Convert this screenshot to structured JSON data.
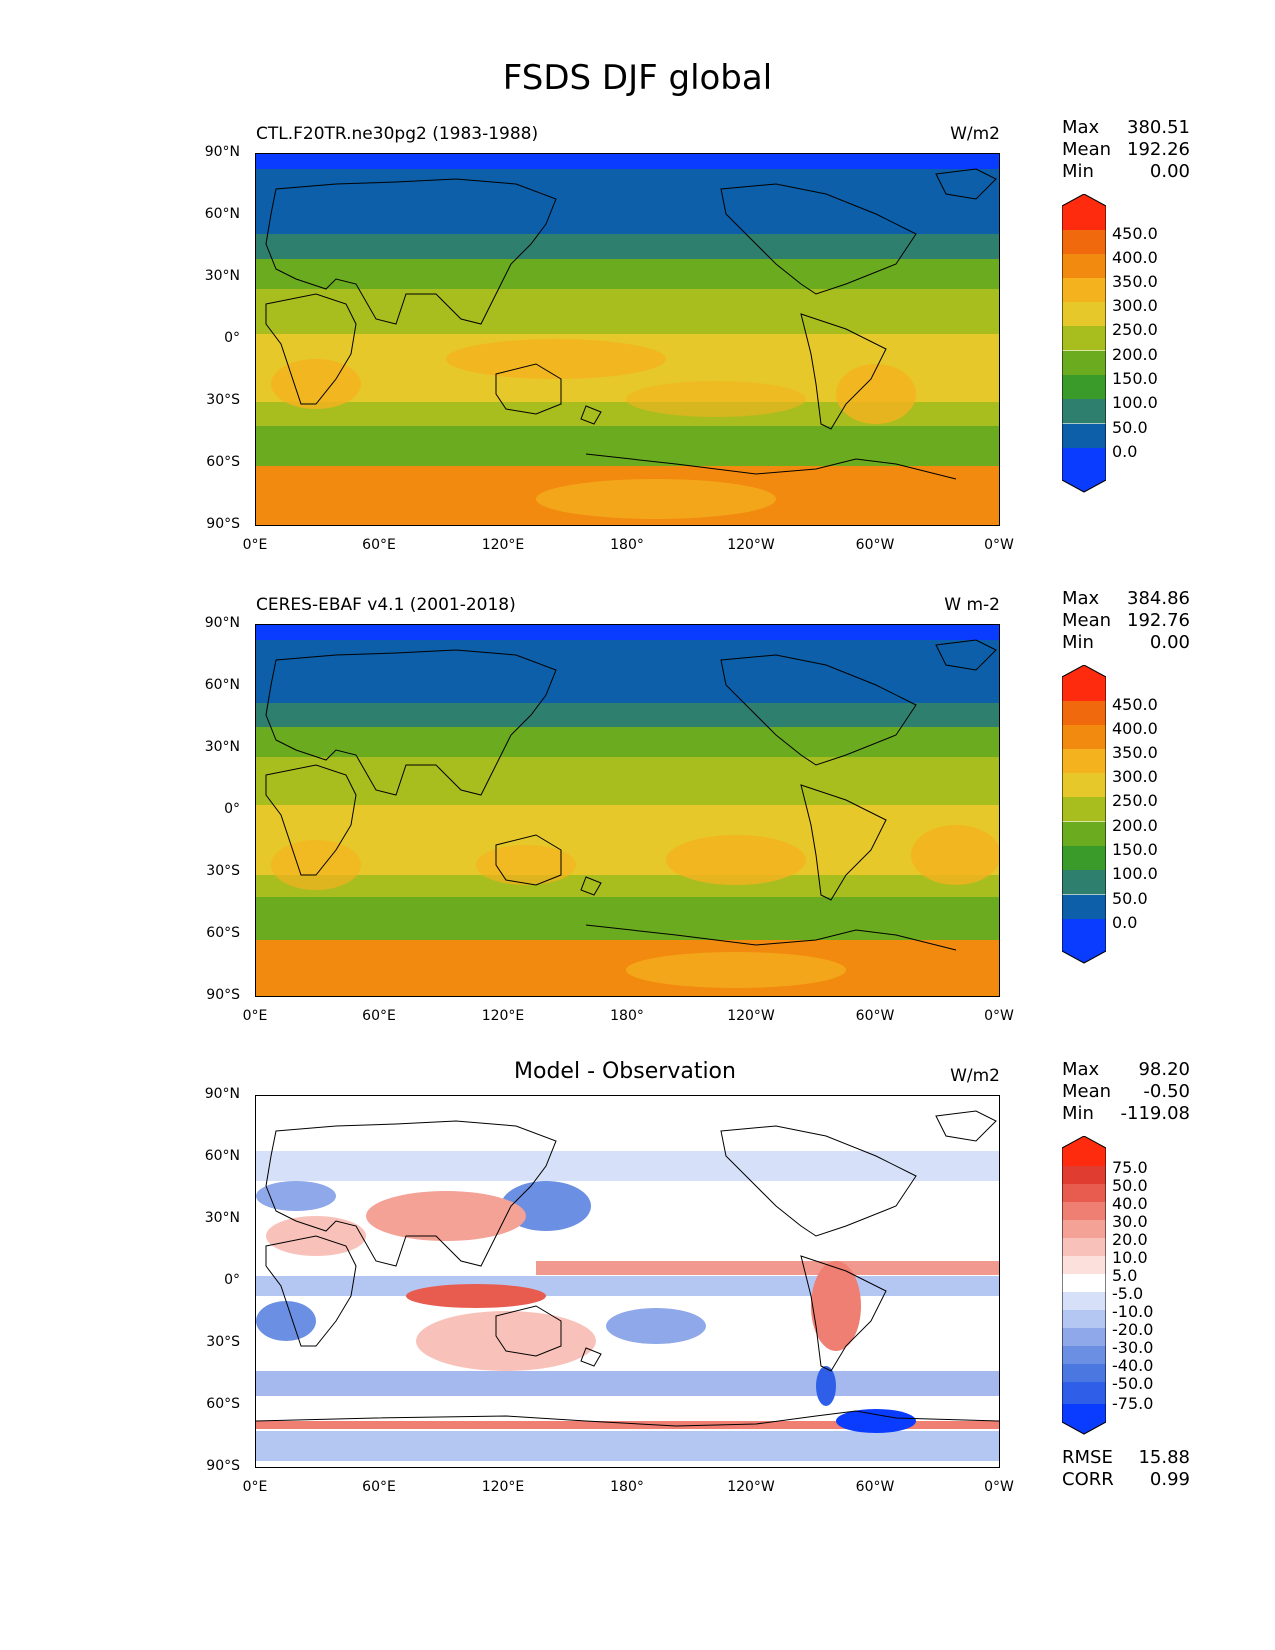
{
  "figure_title": "FSDS DJF global",
  "x_ticks": [
    "0°E",
    "60°E",
    "120°E",
    "180°",
    "120°W",
    "60°W",
    "0°W"
  ],
  "y_ticks": [
    "90°N",
    "60°N",
    "30°N",
    "0°",
    "30°S",
    "60°S",
    "90°S"
  ],
  "panels": [
    {
      "title": "CTL.F20TR.ne30pg2 (1983-1988)",
      "units": "W/m2",
      "stats": {
        "max_label": "Max",
        "max": "380.51",
        "mean_label": "Mean",
        "mean": "192.26",
        "min_label": "Min",
        "min": "0.00"
      },
      "colorbar_levels": [
        "450.0",
        "400.0",
        "350.0",
        "300.0",
        "250.0",
        "200.0",
        "150.0",
        "100.0",
        "50.0",
        "0.0"
      ]
    },
    {
      "title": "CERES-EBAF v4.1 (2001-2018)",
      "units": "W m-2",
      "stats": {
        "max_label": "Max",
        "max": "384.86",
        "mean_label": "Mean",
        "mean": "192.76",
        "min_label": "Min",
        "min": "0.00"
      },
      "colorbar_levels": [
        "450.0",
        "400.0",
        "350.0",
        "300.0",
        "250.0",
        "200.0",
        "150.0",
        "100.0",
        "50.0",
        "0.0"
      ]
    },
    {
      "title": "Model - Observation",
      "units": "W/m2",
      "stats": {
        "max_label": "Max",
        "max": "98.20",
        "mean_label": "Mean",
        "mean": "-0.50",
        "min_label": "Min",
        "min": "-119.08"
      },
      "colorbar_levels": [
        "75.0",
        "50.0",
        "40.0",
        "30.0",
        "20.0",
        "10.0",
        "5.0",
        "-5.0",
        "-10.0",
        "-20.0",
        "-30.0",
        "-40.0",
        "-50.0",
        "-75.0"
      ],
      "rmse_label": "RMSE",
      "rmse": "15.88",
      "corr_label": "CORR",
      "corr": "0.99"
    }
  ],
  "colors": {
    "abs_scale": [
      "#0a3cff",
      "#0c5fa8",
      "#2f7f6e",
      "#3a9a2a",
      "#6aab1f",
      "#a8bd1e",
      "#e6c82a",
      "#f5b21f",
      "#f28a10",
      "#f06a0d",
      "#ff2b0f"
    ],
    "diff_scale": [
      "#0a3cff",
      "#2f5fe8",
      "#4b77e0",
      "#6b8fe3",
      "#8ea8ea",
      "#b4c6f2",
      "#d6e0f8",
      "#ffffff",
      "#fbe0dc",
      "#f8c2ba",
      "#f4a196",
      "#ee7f72",
      "#e75c4f",
      "#e03c2f",
      "#ff2b0f"
    ]
  }
}
